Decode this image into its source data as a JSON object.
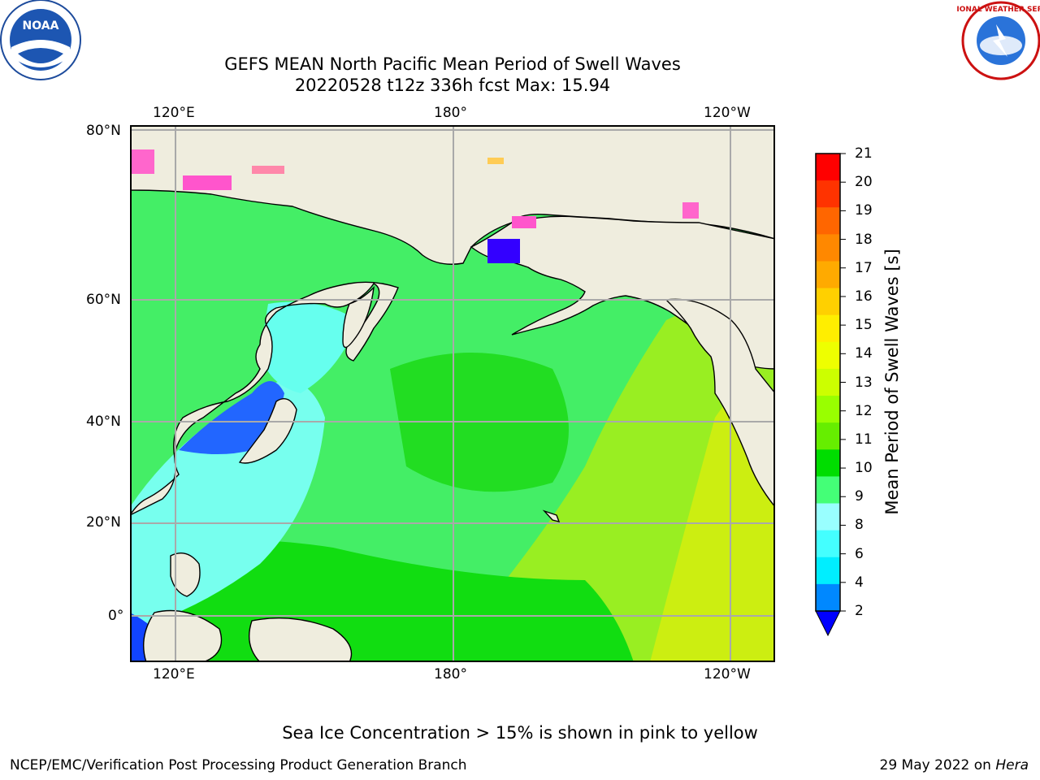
{
  "title": {
    "line1": "GEFS MEAN North Pacific Mean Period of Swell Waves",
    "line2": "20220528 t12z 336h fcst   Max: 15.94"
  },
  "map": {
    "lon_labels": [
      "120°E",
      "180°",
      "120°W"
    ],
    "lat_labels": [
      "80°N",
      "60°N",
      "40°N",
      "20°N",
      "0°"
    ],
    "land_color": "#efedde",
    "grid": true
  },
  "colorbar": {
    "label": "Mean Period of Swell Waves [s]",
    "ticks": [
      "21",
      "20",
      "19",
      "18",
      "17",
      "16",
      "15",
      "14",
      "13",
      "12",
      "11",
      "10",
      "9",
      "8",
      "6",
      "4",
      "2"
    ],
    "colors_top_to_bottom": [
      "#ff0000",
      "#ff3300",
      "#ff6600",
      "#ff8800",
      "#ffaa00",
      "#ffd000",
      "#ffee00",
      "#eeff00",
      "#ccff00",
      "#99ff00",
      "#66ee00",
      "#00dd00",
      "#44ff77",
      "#99ffff",
      "#44ffff",
      "#00eeff",
      "#0088ff"
    ],
    "extend_color": "#0000ff"
  },
  "chart_data": {
    "type": "heatmap",
    "title": "GEFS MEAN North Pacific Mean Period of Swell Waves",
    "subtitle": "20220528 t12z 336h fcst   Max: 15.94",
    "colorbar_label": "Mean Period of Swell Waves [s]",
    "colorbar_range": [
      2,
      21
    ],
    "max_value": 15.94
  },
  "note": "Sea Ice Concentration > 15% is shown in pink to yellow",
  "footer": {
    "left": "NCEP/EMC/Verification Post Processing Product Generation Branch",
    "right_date": "29 May 2022 on ",
    "right_host": "Hera"
  },
  "logos": {
    "noaa_text": "NOAA",
    "nws_text": "NATIONAL WEATHER SERVICE"
  }
}
